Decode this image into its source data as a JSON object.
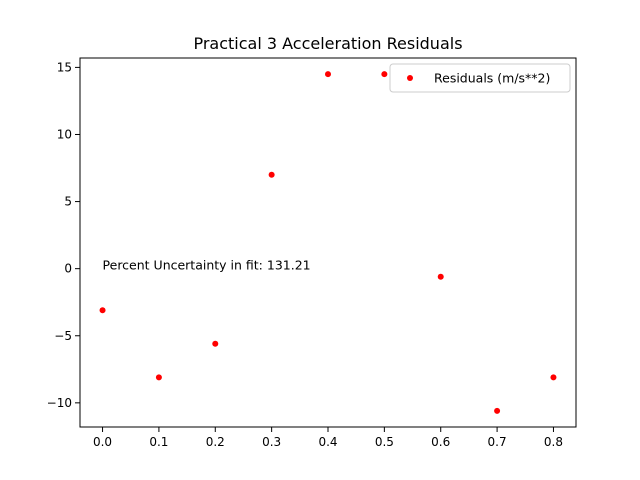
{
  "chart_data": {
    "type": "scatter",
    "title": "Practical 3 Acceleration Residuals",
    "xlabel": "",
    "ylabel": "",
    "xlim": [
      -0.04,
      0.84
    ],
    "ylim": [
      -11.8,
      15.7
    ],
    "x_ticks": [
      0.0,
      0.1,
      0.2,
      0.3,
      0.4,
      0.5,
      0.6,
      0.7,
      0.8
    ],
    "x_tick_labels": [
      "0.0",
      "0.1",
      "0.2",
      "0.3",
      "0.4",
      "0.5",
      "0.6",
      "0.7",
      "0.8"
    ],
    "y_ticks": [
      -10,
      -5,
      0,
      5,
      10,
      15
    ],
    "y_tick_labels": [
      "−10",
      "−5",
      "0",
      "5",
      "10",
      "15"
    ],
    "grid": false,
    "legend_position": "top-right",
    "series": [
      {
        "name": "Residuals (m/s**2)",
        "color": "#ff0000",
        "marker": "dot",
        "x": [
          0.0,
          0.1,
          0.2,
          0.3,
          0.4,
          0.5,
          0.6,
          0.7,
          0.8
        ],
        "y": [
          -3.1,
          -8.1,
          -5.6,
          7.0,
          14.5,
          14.5,
          -0.6,
          -10.6,
          -8.1
        ]
      }
    ],
    "annotations": [
      {
        "text": "Percent Uncertainty in fit: 131.21",
        "x": 0.0,
        "y": 0.0
      }
    ]
  }
}
